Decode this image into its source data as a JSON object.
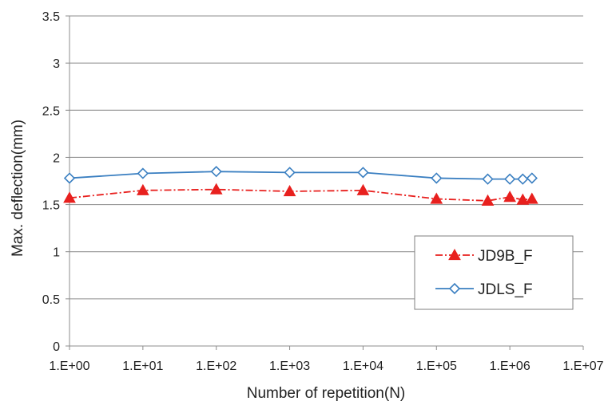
{
  "chart_data": {
    "type": "line",
    "xlabel": "Number of repetition(N)",
    "ylabel": "Max. deflection(mm)",
    "x_scale": "log",
    "xlim": [
      1,
      10000000
    ],
    "ylim": [
      0,
      3.5
    ],
    "x_tick_labels": [
      "1.E+00",
      "1.E+01",
      "1.E+02",
      "1.E+03",
      "1.E+04",
      "1.E+05",
      "1.E+06",
      "1.E+07"
    ],
    "y_tick_labels": [
      "0",
      "0.5",
      "1",
      "1.5",
      "2",
      "2.5",
      "3",
      "3.5"
    ],
    "grid": "horizontal",
    "legend_position": "lower-right",
    "series": [
      {
        "name": "JD9B_F",
        "color": "#e8201e",
        "marker": "triangle",
        "line_style": "dash-dot",
        "x": [
          1,
          10,
          100,
          1000,
          10000,
          100000,
          500000,
          1000000,
          1500000,
          2000000
        ],
        "y": [
          1.57,
          1.65,
          1.66,
          1.64,
          1.65,
          1.56,
          1.54,
          1.58,
          1.55,
          1.56
        ]
      },
      {
        "name": "JDLS_F",
        "color": "#3a7fc1",
        "marker": "diamond",
        "line_style": "solid",
        "x": [
          1,
          10,
          100,
          1000,
          10000,
          100000,
          500000,
          1000000,
          1500000,
          2000000
        ],
        "y": [
          1.78,
          1.83,
          1.85,
          1.84,
          1.84,
          1.78,
          1.77,
          1.77,
          1.77,
          1.78
        ]
      }
    ]
  }
}
